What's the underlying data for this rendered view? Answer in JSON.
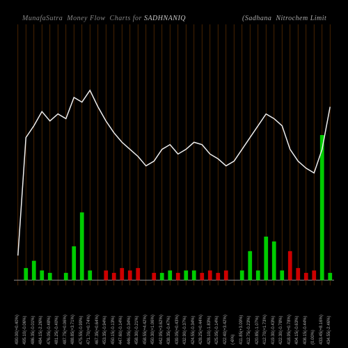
{
  "title": {
    "prefix": "MunafaSutra  Money Flow  Charts for ",
    "symbol": "SADHNANIQ",
    "suffix": "                           (Sadhana  Nitrochem Limit"
  },
  "chart": {
    "type": "combo-bar-line",
    "background_color": "#000000",
    "grid_color": "#663300",
    "grid_line_width": 0.7,
    "baseline_color": "#888888",
    "line_color": "#eeeeee",
    "line_width": 1.5,
    "bar_color_pos": "#00cc00",
    "bar_color_neg": "#cc0000",
    "bar_color_zero": "#555555",
    "n_points": 40,
    "line_ymin": 0,
    "line_ymax": 100,
    "bar_ymin": 0,
    "bar_ymax": 100,
    "baseline_fraction_from_top": 0.98,
    "line_values": [
      5,
      55,
      60,
      66,
      62,
      65,
      63,
      72,
      70,
      75,
      68,
      62,
      57,
      53,
      50,
      47,
      43,
      45,
      50,
      52,
      48,
      50,
      53,
      52,
      48,
      46,
      43,
      45,
      50,
      55,
      60,
      65,
      63,
      60,
      50,
      45,
      42,
      40,
      50,
      68
    ],
    "bar_values": [
      0,
      5,
      8,
      4,
      3,
      0,
      3,
      14,
      28,
      4,
      0,
      -4,
      -3,
      -5,
      -4,
      -5,
      0,
      -3,
      3,
      4,
      -3,
      4,
      4,
      -3,
      -4,
      -3,
      -4,
      0,
      4,
      12,
      4,
      18,
      16,
      4,
      -12,
      -5,
      -3,
      -4,
      60,
      3
    ],
    "x_labels": [
      "490.00(+0.40%)",
      "495.10(-0.06%)",
      "486.35(-0.01%)",
      "484.15(-2.26%)",
      "476.05(-0.48%)",
      "481.25(-0.40%)",
      "487.75(+0.06%)",
      "488.85(+3.71%)",
      "475.55(-0.99%)",
      "471.70(+0.74%)",
      "467.35(+0.64%)",
      "453.35(-0.94%)",
      "450.15(-0.13%)",
      "447.60(-0.14%)",
      "446.05(-0.34%)",
      "458.30(-0.21%)",
      "458.55(+4.42%)",
      "450.30(+1.06%)",
      "442.95(+3.62%)",
      "438.35(-0.47%)",
      "439.05(+0.43%)",
      "432.90(-0.37%)",
      "424.55(-0.34%)",
      "428.25(+0.44%)",
      "428.10(-1.83%)",
      "425.05(-0.14%)",
      "422.40(+3.42%)",
      "(-6%)",
      "411.85(+3.09%)",
      "412.75(-0.23%)",
      "420.85(-1.07%)",
      "412.70(+1.73%)",
      "419.30(-0.43%)",
      "422.30(-0.78%)",
      "418.95(+0.78%)",
      "404.15(-0.63%)",
      "408.15(-0.44%)",
      "(0.00%)",
      "433.45(+8.16%)",
      "434.55(-2.46%)"
    ]
  }
}
